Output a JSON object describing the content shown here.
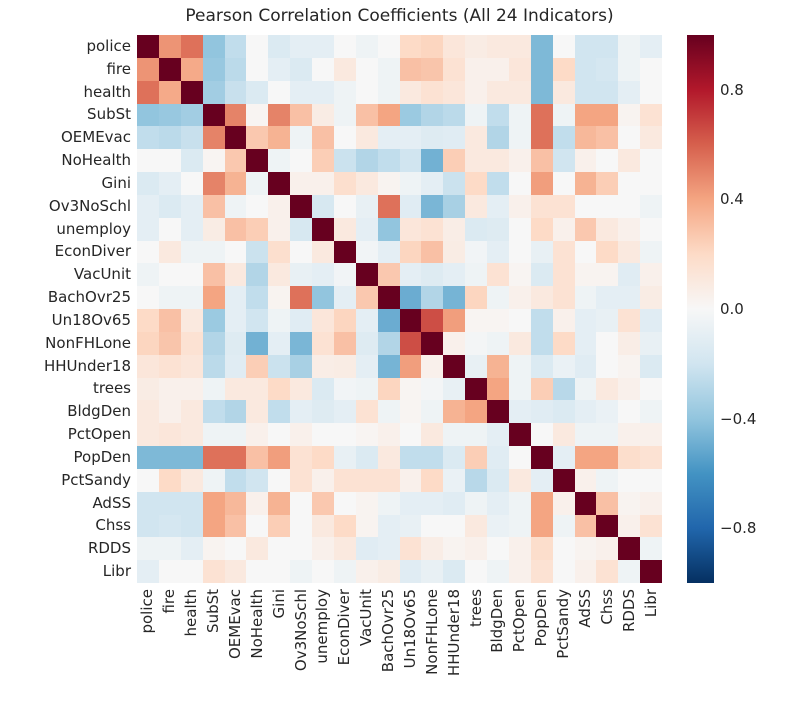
{
  "title": "Pearson Correlation Coefficients (All 24 Indicators)",
  "colors": {
    "background": "#ffffff",
    "text": "#262626",
    "colormap_name": "RdBu_r",
    "colormap_stops_low_to_high": [
      "#053061",
      "#2166ac",
      "#4393c3",
      "#92c5de",
      "#d1e5f0",
      "#f7f7f7",
      "#fddbc7",
      "#f4a582",
      "#d6604d",
      "#b2182b",
      "#67001f"
    ]
  },
  "colorbar": {
    "ticks": [
      {
        "label": "0.8",
        "value": 0.8
      },
      {
        "label": "0.4",
        "value": 0.4
      },
      {
        "label": "0.0",
        "value": 0.0
      },
      {
        "label": "−0.4",
        "value": -0.4
      },
      {
        "label": "−0.8",
        "value": -0.8
      }
    ]
  },
  "chart_data": {
    "type": "heatmap",
    "title": "Pearson Correlation Coefficients (All 24 Indicators)",
    "colormap": "RdBu_r",
    "vmin": -1,
    "vmax": 1,
    "grid": false,
    "symmetric": true,
    "labels": [
      "police",
      "fire",
      "health",
      "SubSt",
      "OEMEvac",
      "NoHealth",
      "Gini",
      "Ov3NoSchl",
      "unemploy",
      "EconDiver",
      "VacUnit",
      "BachOvr25",
      "Un18Ov65",
      "NonFHLone",
      "HHUnder18",
      "trees",
      "BldgDen",
      "PctOpen",
      "PopDen",
      "PctSandy",
      "AdSS",
      "Chss",
      "RDDS",
      "Libr"
    ],
    "matrix_upper_triangle": [
      [
        1,
        0.45,
        0.55,
        -0.4,
        -0.25,
        0,
        -0.15,
        -0.1,
        -0.1,
        0,
        -0.05,
        0,
        0.2,
        0.22,
        0.12,
        0.08,
        0.1,
        0.1,
        -0.45,
        0,
        -0.2,
        -0.2,
        -0.05,
        -0.1
      ],
      [
        1,
        0.38,
        -0.38,
        -0.27,
        0,
        -0.1,
        -0.15,
        0,
        0.1,
        0,
        -0.05,
        0.3,
        0.28,
        0.15,
        0.05,
        0.05,
        0.12,
        -0.45,
        0.2,
        -0.2,
        -0.18,
        -0.05,
        0
      ],
      [
        1,
        -0.35,
        -0.23,
        -0.15,
        0,
        -0.1,
        -0.1,
        -0.05,
        0,
        -0.05,
        0.1,
        0.15,
        0.12,
        0.05,
        0.1,
        0.1,
        -0.45,
        0.1,
        -0.2,
        -0.2,
        -0.1,
        0
      ],
      [
        1,
        0.5,
        0.02,
        0.5,
        0.3,
        0.08,
        -0.05,
        0.3,
        0.4,
        -0.37,
        -0.3,
        -0.27,
        -0.05,
        -0.25,
        -0.05,
        0.55,
        -0.05,
        0.4,
        0.4,
        0.03,
        0.15
      ],
      [
        1,
        0.27,
        0.35,
        -0.05,
        0.3,
        0,
        0.1,
        -0.1,
        -0.1,
        -0.13,
        -0.12,
        0.1,
        -0.3,
        -0.05,
        0.55,
        -0.25,
        0.33,
        0.3,
        0,
        0.1
      ],
      [
        1,
        -0.05,
        0,
        0.25,
        -0.22,
        -0.3,
        -0.25,
        -0.2,
        -0.48,
        0.25,
        0.1,
        0.1,
        0.05,
        0.3,
        -0.2,
        0.05,
        0,
        0.1,
        0
      ],
      [
        1,
        0.05,
        0.05,
        0.17,
        0.1,
        0.03,
        -0.05,
        -0.1,
        -0.22,
        0.2,
        -0.25,
        0,
        0.42,
        0,
        0.35,
        0.25,
        0,
        0
      ],
      [
        1,
        -0.17,
        0,
        -0.08,
        0.55,
        -0.12,
        -0.46,
        -0.33,
        0.1,
        -0.1,
        0.05,
        0.15,
        0.15,
        0,
        0,
        0,
        -0.05
      ],
      [
        1,
        0.1,
        -0.1,
        -0.4,
        0.12,
        0.15,
        0.07,
        -0.15,
        -0.13,
        0,
        0.2,
        0.05,
        0.27,
        0.1,
        0.05,
        0
      ],
      [
        1,
        -0.03,
        -0.1,
        0.22,
        0.3,
        0.08,
        -0.03,
        -0.1,
        0,
        -0.08,
        0.15,
        0,
        0.2,
        0.1,
        -0.05
      ],
      [
        1,
        0.27,
        -0.1,
        -0.13,
        -0.1,
        -0.05,
        0.15,
        0.02,
        -0.15,
        0.15,
        0.03,
        0.03,
        -0.12,
        0.05
      ],
      [
        1,
        -0.5,
        -0.3,
        -0.47,
        0.22,
        -0.05,
        0.05,
        0.1,
        0.15,
        -0.05,
        -0.1,
        -0.1,
        0.08
      ],
      [
        1,
        0.65,
        0.42,
        0.02,
        0.02,
        0,
        -0.25,
        0.05,
        -0.1,
        -0.08,
        0.15,
        -0.12
      ],
      [
        1,
        0.05,
        -0.02,
        -0.05,
        0.1,
        -0.25,
        0.2,
        -0.1,
        0,
        0.07,
        -0.08
      ],
      [
        1,
        -0.08,
        0.35,
        -0.05,
        -0.15,
        -0.07,
        -0.12,
        0,
        0.03,
        -0.15
      ],
      [
        1,
        0.4,
        -0.05,
        0.25,
        -0.28,
        -0.05,
        0.1,
        0.05,
        0
      ],
      [
        1,
        -0.1,
        -0.12,
        -0.15,
        -0.1,
        -0.07,
        0,
        -0.05
      ],
      [
        1,
        0,
        0.1,
        -0.05,
        -0.05,
        0.05,
        0.05
      ],
      [
        1,
        -0.1,
        0.4,
        0.4,
        0.18,
        0.15
      ],
      [
        1,
        0.05,
        -0.05,
        0,
        0
      ],
      [
        1,
        0.3,
        0.03,
        0.05
      ],
      [
        1,
        0.05,
        0.15
      ],
      [
        1,
        -0.05
      ],
      [
        1
      ]
    ],
    "legend_position": "right-colorbar",
    "xlabel": "",
    "ylabel": ""
  }
}
